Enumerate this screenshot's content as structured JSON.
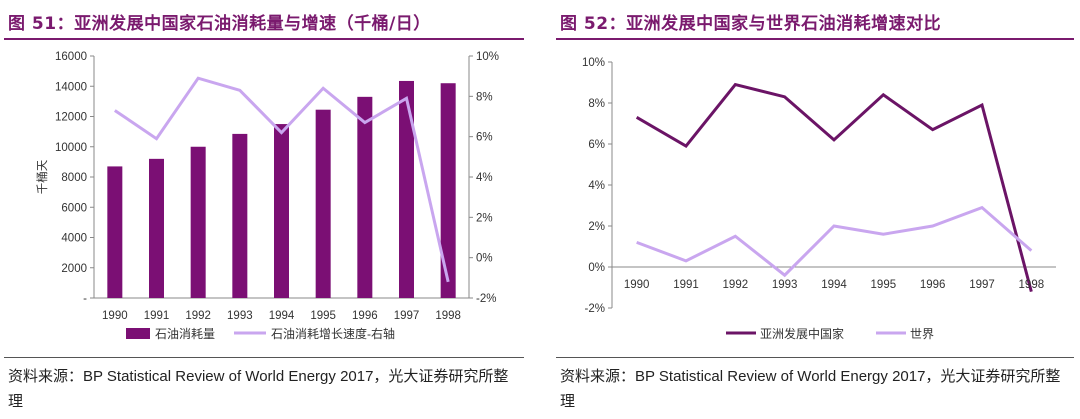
{
  "left": {
    "title": "图 51：亚洲发展中国家石油消耗量与增速（千桶/日）",
    "source_label": "资料来源：",
    "source_text": "BP Statistical Review of World Energy 2017，光大证券研究所整理"
  },
  "right": {
    "title": "图 52：亚洲发展中国家与世界石油消耗增速对比",
    "source_label": "资料来源：",
    "source_text": "BP Statistical Review of World Energy 2017，光大证券研究所整理"
  },
  "colors": {
    "title": "#7a1a6e",
    "bar": "#7b0f74",
    "line_light": "#c9a6ef",
    "line_dark": "#6b1466"
  },
  "chart_data": [
    {
      "type": "bar",
      "categories": [
        "1990",
        "1991",
        "1992",
        "1993",
        "1994",
        "1995",
        "1996",
        "1997",
        "1998"
      ],
      "ylabel": "千桶天",
      "ylim": [
        0,
        16000
      ],
      "y_ticks": [
        "-",
        "2000",
        "4000",
        "6000",
        "8000",
        "10000",
        "12000",
        "14000",
        "16000"
      ],
      "y2lim": [
        -2,
        10
      ],
      "y2_ticks": [
        "-2%",
        "0%",
        "2%",
        "4%",
        "6%",
        "8%",
        "10%"
      ],
      "series": [
        {
          "name": "石油消耗量",
          "type": "bar",
          "axis": "left",
          "values": [
            8700,
            9200,
            10000,
            10850,
            11500,
            12450,
            13300,
            14350,
            14200
          ]
        },
        {
          "name": "石油消耗增长速度-右轴",
          "type": "line",
          "axis": "right",
          "values": [
            7.3,
            5.9,
            8.9,
            8.3,
            6.2,
            8.4,
            6.7,
            7.9,
            -1.2
          ]
        }
      ],
      "legend_position": "bottom"
    },
    {
      "type": "line",
      "categories": [
        "1990",
        "1991",
        "1992",
        "1993",
        "1994",
        "1995",
        "1996",
        "1997",
        "1998"
      ],
      "ylim": [
        -2,
        10
      ],
      "y_ticks": [
        "-2%",
        "0%",
        "2%",
        "4%",
        "6%",
        "8%",
        "10%"
      ],
      "series": [
        {
          "name": "亚洲发展中国家",
          "values": [
            7.3,
            5.9,
            8.9,
            8.3,
            6.2,
            8.4,
            6.7,
            7.9,
            -1.2
          ]
        },
        {
          "name": "世界",
          "values": [
            1.2,
            0.3,
            1.5,
            -0.4,
            2.0,
            1.6,
            2.0,
            2.9,
            0.8
          ]
        }
      ],
      "legend_position": "bottom"
    }
  ]
}
